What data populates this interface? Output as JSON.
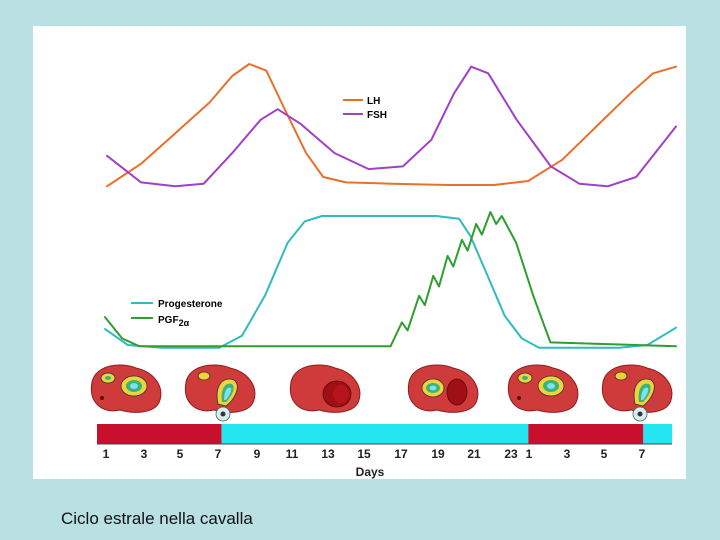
{
  "caption": "Ciclo estrale nella cavalla",
  "colors": {
    "lh": "#e8702a",
    "fsh": "#a23fc8",
    "progesterone": "#2ebcc0",
    "pgf2a": "#2e9e2e",
    "phase_red": "#c8102e",
    "phase_cyan": "#24e6f0",
    "ovary": "#cf3a3a"
  },
  "chart_data": [
    {
      "type": "line",
      "legend_position": "top-center",
      "x_range": [
        0,
        100
      ],
      "y_range": [
        0,
        100
      ],
      "grid": false,
      "series": [
        {
          "name": "LH",
          "color": "#e8702a",
          "points": [
            [
              0,
              5
            ],
            [
              6,
              22
            ],
            [
              12,
              45
            ],
            [
              18,
              68
            ],
            [
              22,
              88
            ],
            [
              25,
              97
            ],
            [
              28,
              92
            ],
            [
              31,
              65
            ],
            [
              35,
              30
            ],
            [
              38,
              12
            ],
            [
              42,
              8
            ],
            [
              50,
              7
            ],
            [
              60,
              6
            ],
            [
              68,
              6
            ],
            [
              74,
              9
            ],
            [
              80,
              25
            ],
            [
              86,
              50
            ],
            [
              92,
              75
            ],
            [
              96,
              90
            ],
            [
              100,
              95
            ]
          ]
        },
        {
          "name": "FSH",
          "color": "#a23fc8",
          "points": [
            [
              0,
              28
            ],
            [
              6,
              8
            ],
            [
              12,
              5
            ],
            [
              17,
              7
            ],
            [
              22,
              30
            ],
            [
              27,
              55
            ],
            [
              30,
              63
            ],
            [
              34,
              52
            ],
            [
              40,
              30
            ],
            [
              46,
              18
            ],
            [
              52,
              20
            ],
            [
              57,
              40
            ],
            [
              61,
              75
            ],
            [
              64,
              95
            ],
            [
              67,
              90
            ],
            [
              72,
              55
            ],
            [
              78,
              20
            ],
            [
              83,
              7
            ],
            [
              88,
              5
            ],
            [
              93,
              12
            ],
            [
              100,
              50
            ]
          ]
        }
      ]
    },
    {
      "type": "line",
      "legend_position": "left",
      "x_range": [
        0,
        100
      ],
      "y_range": [
        0,
        100
      ],
      "grid": false,
      "series": [
        {
          "name": "Progesterone",
          "color": "#2ebcc0",
          "points": [
            [
              0,
              15
            ],
            [
              4,
              3
            ],
            [
              10,
              1
            ],
            [
              20,
              1
            ],
            [
              24,
              10
            ],
            [
              28,
              40
            ],
            [
              32,
              80
            ],
            [
              35,
              96
            ],
            [
              38,
              100
            ],
            [
              58,
              100
            ],
            [
              62,
              98
            ],
            [
              64,
              85
            ],
            [
              67,
              55
            ],
            [
              70,
              25
            ],
            [
              73,
              8
            ],
            [
              76,
              1
            ],
            [
              90,
              1
            ],
            [
              95,
              3
            ],
            [
              100,
              16
            ]
          ]
        },
        {
          "name": "PGF2α",
          "color": "#2e9e2e",
          "points": [
            [
              0,
              24
            ],
            [
              3,
              8
            ],
            [
              6,
              2
            ],
            [
              50,
              2
            ],
            [
              52,
              20
            ],
            [
              53,
              14
            ],
            [
              55,
              40
            ],
            [
              56,
              33
            ],
            [
              57.5,
              55
            ],
            [
              58.5,
              47
            ],
            [
              60,
              70
            ],
            [
              61,
              62
            ],
            [
              62.5,
              82
            ],
            [
              63.5,
              74
            ],
            [
              65,
              94
            ],
            [
              66,
              86
            ],
            [
              67.5,
              103
            ],
            [
              68.5,
              94
            ],
            [
              69.5,
              100
            ],
            [
              72,
              80
            ],
            [
              75,
              40
            ],
            [
              78,
              5
            ],
            [
              100,
              2
            ]
          ]
        }
      ]
    }
  ],
  "days": {
    "title": "Days",
    "labels": [
      "1",
      "3",
      "5",
      "7",
      "9",
      "11",
      "13",
      "15",
      "17",
      "19",
      "21",
      "23",
      "1",
      "3",
      "5",
      "7"
    ],
    "phases": [
      {
        "state": "estrus",
        "color": "#c8102e",
        "from_day": 1,
        "to_day": 7.5
      },
      {
        "state": "diestrus",
        "color": "#24e6f0",
        "from_day": 7.5,
        "to_day": 23.5
      },
      {
        "state": "estrus",
        "color": "#c8102e",
        "from_day": 23.5,
        "to_day": 29.5
      },
      {
        "state": "diestrus",
        "color": "#24e6f0",
        "from_day": 29.5,
        "to_day": 31
      }
    ]
  },
  "ovaries": [
    {
      "stage": "follicle"
    },
    {
      "stage": "ovulation"
    },
    {
      "stage": "corpus-luteum"
    },
    {
      "stage": "follicle-with-corpus-luteum"
    },
    {
      "stage": "follicle"
    },
    {
      "stage": "ovulation"
    }
  ]
}
